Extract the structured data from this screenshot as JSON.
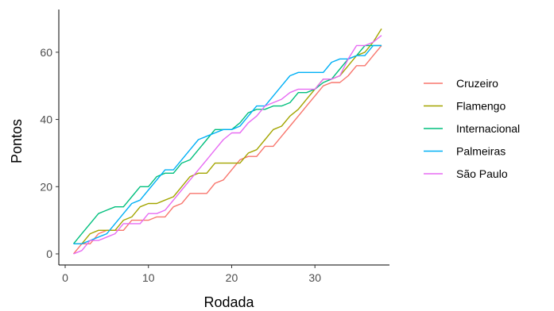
{
  "chart_data": {
    "type": "line",
    "title": "",
    "xlabel": "Rodada",
    "ylabel": "Pontos",
    "xlim": [
      0,
      39
    ],
    "ylim": [
      0,
      72
    ],
    "x_ticks": [
      0,
      10,
      20,
      30
    ],
    "y_ticks": [
      0,
      20,
      40,
      60
    ],
    "grid": false,
    "legend_position": "right",
    "x": [
      1,
      2,
      3,
      4,
      5,
      6,
      7,
      8,
      9,
      10,
      11,
      12,
      13,
      14,
      15,
      16,
      17,
      18,
      19,
      20,
      21,
      22,
      23,
      24,
      25,
      26,
      27,
      28,
      29,
      30,
      31,
      32,
      33,
      34,
      35,
      36,
      37,
      38
    ],
    "series": [
      {
        "name": "Cruzeiro",
        "color": "#F8766D",
        "values": [
          0,
          3,
          3,
          6,
          7,
          7,
          7,
          10,
          10,
          10,
          11,
          11,
          14,
          15,
          18,
          18,
          18,
          21,
          22,
          25,
          28,
          29,
          29,
          32,
          32,
          35,
          38,
          41,
          44,
          47,
          50,
          51,
          51,
          53,
          56,
          56,
          59,
          62
        ]
      },
      {
        "name": "Flamengo",
        "color": "#A3A500",
        "values": [
          3,
          3,
          6,
          7,
          7,
          7,
          10,
          11,
          14,
          15,
          15,
          16,
          17,
          20,
          23,
          24,
          24,
          27,
          27,
          27,
          27,
          30,
          31,
          34,
          37,
          38,
          41,
          43,
          46,
          49,
          52,
          52,
          53,
          56,
          59,
          60,
          63,
          67
        ]
      },
      {
        "name": "Internacional",
        "color": "#00BF7D",
        "values": [
          3,
          6,
          9,
          12,
          13,
          14,
          14,
          17,
          20,
          20,
          23,
          24,
          24,
          27,
          28,
          31,
          34,
          37,
          37,
          37,
          39,
          42,
          43,
          43,
          44,
          44,
          45,
          48,
          48,
          49,
          51,
          52,
          55,
          58,
          59,
          62,
          62,
          62
        ]
      },
      {
        "name": "Palmeiras",
        "color": "#00B0F6",
        "values": [
          3,
          3,
          4,
          5,
          6,
          9,
          12,
          15,
          16,
          19,
          22,
          25,
          25,
          28,
          31,
          34,
          35,
          36,
          37,
          37,
          38,
          41,
          44,
          44,
          47,
          50,
          53,
          54,
          54,
          54,
          54,
          57,
          58,
          58,
          59,
          59,
          62,
          62
        ]
      },
      {
        "name": "São Paulo",
        "color": "#E76BF3",
        "values": [
          0,
          1,
          4,
          4,
          5,
          6,
          9,
          9,
          9,
          12,
          12,
          13,
          16,
          19,
          22,
          25,
          28,
          31,
          34,
          36,
          36,
          39,
          41,
          44,
          45,
          46,
          48,
          49,
          49,
          49,
          52,
          52,
          53,
          58,
          62,
          62,
          63,
          65
        ]
      }
    ]
  }
}
